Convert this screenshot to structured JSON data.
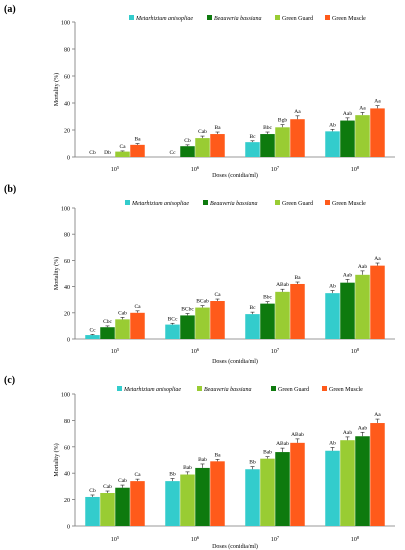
{
  "chart_data": [
    {
      "panel_label": "(a)",
      "type": "bar",
      "ylabel": "Mortality (%)",
      "xlabel": "Doses (conidia/ml)",
      "ylim": [
        0,
        100
      ],
      "yticks": [
        0,
        20,
        40,
        60,
        80,
        100
      ],
      "grid": false,
      "legend_position": "top",
      "categories": [
        "10^5",
        "10^6",
        "10^7",
        "10^8"
      ],
      "series": [
        {
          "name": "Metarhizium anisopliae",
          "color": "#33cccc",
          "values": [
            0,
            0,
            11,
            19
          ],
          "errors": [
            0,
            0,
            1,
            1.5
          ],
          "labels": [
            "Cb",
            "Cc",
            "Bc",
            "Ab"
          ]
        },
        {
          "name": "Beauveria bassiana",
          "color": "#0e7a0e",
          "values": [
            0,
            8,
            17,
            27
          ],
          "errors": [
            0,
            1,
            1.5,
            2
          ],
          "labels": [
            "Db",
            "Cb",
            "Bbc",
            "Aab"
          ]
        },
        {
          "name": "Green Guard",
          "color": "#99cc33",
          "values": [
            4,
            14,
            22,
            31
          ],
          "errors": [
            0.5,
            1.5,
            2,
            2
          ],
          "labels": [
            "Ca",
            "Cab",
            "Bgb",
            "Aa"
          ]
        },
        {
          "name": "Green Muscle",
          "color": "#ff5a1a",
          "values": [
            9,
            17,
            28,
            36
          ],
          "errors": [
            1,
            1.5,
            2.5,
            2
          ],
          "labels": [
            "Ba",
            "Ba",
            "Aa",
            "Aa"
          ]
        }
      ]
    },
    {
      "panel_label": "(b)",
      "type": "bar",
      "ylabel": "Mortality (%)",
      "xlabel": "Doses (conidia/ml)",
      "ylim": [
        0,
        100
      ],
      "yticks": [
        0,
        20,
        40,
        60,
        80,
        100
      ],
      "grid": false,
      "legend_position": "top",
      "categories": [
        "10^5",
        "10^6",
        "10^7",
        "10^8"
      ],
      "series": [
        {
          "name": "Metarhizium anisopliae",
          "color": "#33cccc",
          "values": [
            3,
            11,
            19,
            35
          ],
          "errors": [
            0.5,
            1,
            1.5,
            2
          ],
          "labels": [
            "Cc",
            "BCc",
            "Bc",
            "Ab"
          ]
        },
        {
          "name": "Beauveria bassiana",
          "color": "#0e7a0e",
          "values": [
            9,
            18,
            27,
            43
          ],
          "errors": [
            1,
            1.5,
            1.5,
            2.5
          ],
          "labels": [
            "Cbc",
            "BCbc",
            "Bbc",
            "Aab"
          ]
        },
        {
          "name": "Green Guard",
          "color": "#99cc33",
          "values": [
            15,
            24,
            36,
            49
          ],
          "errors": [
            1.5,
            1.5,
            2,
            3
          ],
          "labels": [
            "Cab",
            "BCab",
            "ABab",
            "Aab"
          ]
        },
        {
          "name": "Green Muscle",
          "color": "#ff5a1a",
          "values": [
            20,
            29,
            42,
            56
          ],
          "errors": [
            1.5,
            1.5,
            1.5,
            2
          ],
          "labels": [
            "Ca",
            "Ca",
            "Ba",
            "Aa"
          ]
        }
      ]
    },
    {
      "panel_label": "(c)",
      "type": "bar",
      "ylabel": "Mortality (%)",
      "xlabel": "Doses (conidia/ml)",
      "ylim": [
        0,
        100
      ],
      "yticks": [
        0,
        20,
        40,
        60,
        80,
        100
      ],
      "grid": false,
      "legend_position": "top",
      "categories": [
        "10^5",
        "10^6",
        "10^7",
        "10^8"
      ],
      "series": [
        {
          "name": "Metarhizium anisopliae",
          "color": "#33cccc",
          "values": [
            22,
            34,
            43,
            57
          ],
          "errors": [
            1.5,
            2,
            2,
            2.5
          ],
          "labels": [
            "Cb",
            "Bb",
            "Bb",
            "Ab"
          ]
        },
        {
          "name": "Beauveria bassiana",
          "color": "#99cc33",
          "values": [
            25,
            39,
            51,
            65
          ],
          "errors": [
            1.5,
            2,
            1.5,
            2.5
          ],
          "labels": [
            "Cab",
            "Bab",
            "Bab",
            "Aab"
          ]
        },
        {
          "name": "Green Guard",
          "color": "#0e7a0e",
          "values": [
            29,
            44,
            56,
            68
          ],
          "errors": [
            2,
            3,
            3,
            3
          ],
          "labels": [
            "Cab",
            "Bab",
            "ABab",
            "Aab"
          ]
        },
        {
          "name": "Green Muscle",
          "color": "#ff5a1a",
          "values": [
            34,
            49,
            63,
            78
          ],
          "errors": [
            1.5,
            1.5,
            3,
            3
          ],
          "labels": [
            "Ca",
            "Ba",
            "ABab",
            "Aa"
          ]
        }
      ]
    }
  ]
}
